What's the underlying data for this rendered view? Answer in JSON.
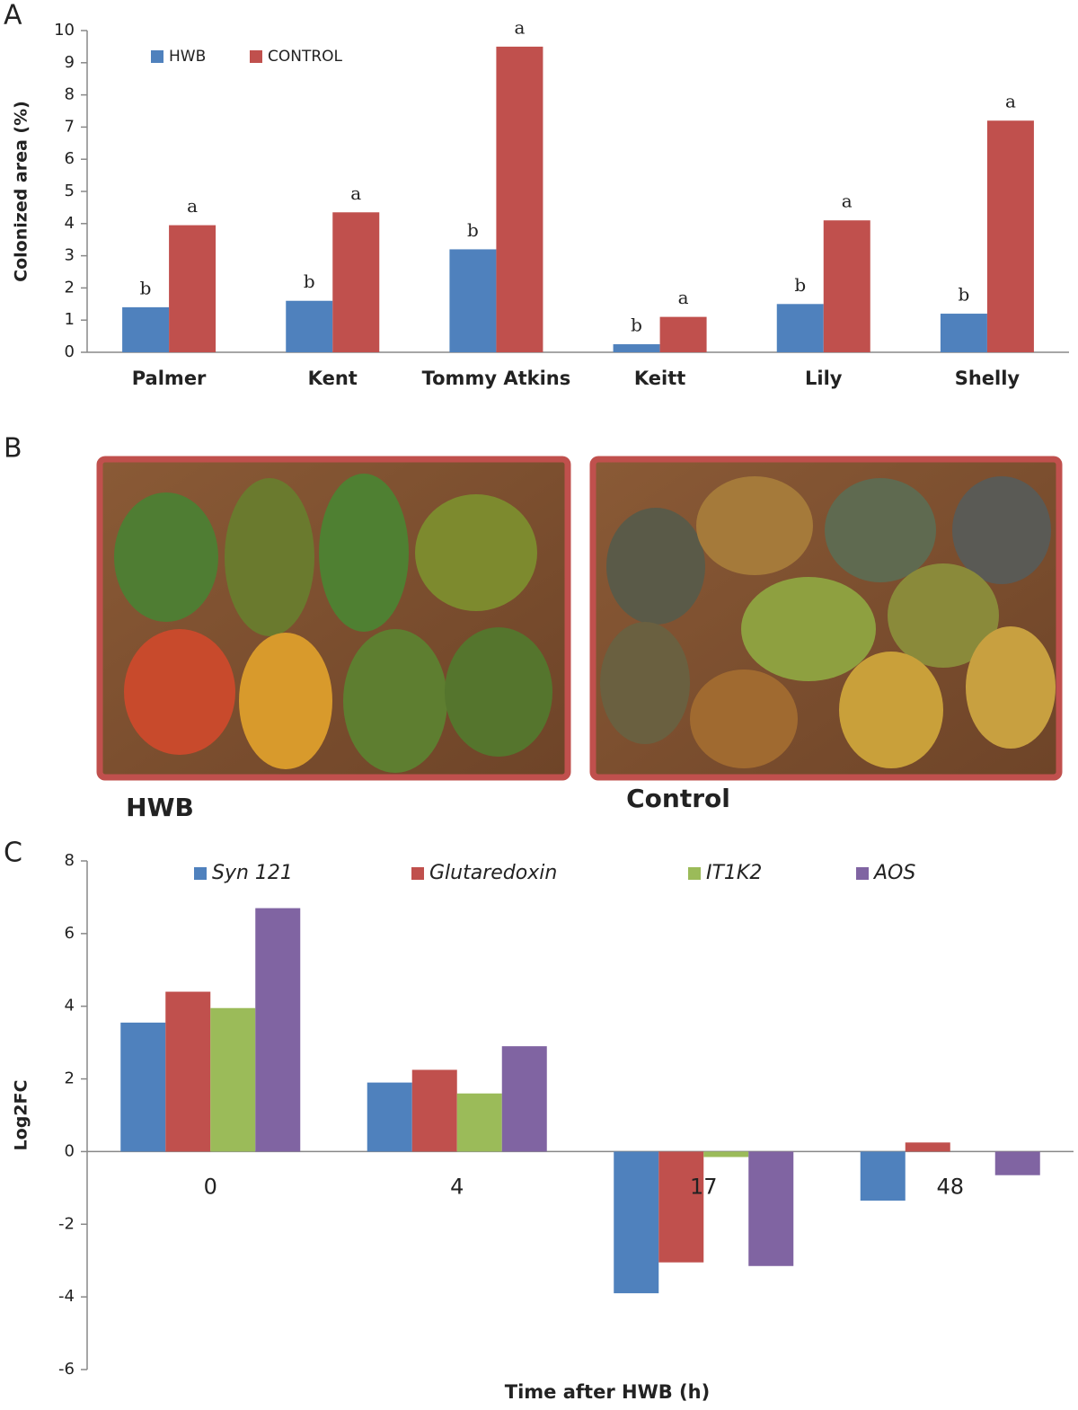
{
  "chart_data": [
    {
      "type": "bar",
      "panel_label": "A",
      "ylabel": "Colonized area (%)",
      "categories": [
        "Palmer",
        "Kent",
        "Tommy Atkins",
        "Keitt",
        "Lily",
        "Shelly"
      ],
      "series": [
        {
          "name": "HWB",
          "color": "#4f81bd",
          "values": [
            1.4,
            1.6,
            3.2,
            0.25,
            1.5,
            1.2
          ],
          "letters": [
            "b",
            "b",
            "b",
            "b",
            "b",
            "b"
          ]
        },
        {
          "name": "CONTROL",
          "color": "#c0504d",
          "values": [
            3.95,
            4.35,
            9.5,
            1.1,
            4.1,
            7.2
          ],
          "letters": [
            "a",
            "a",
            "a",
            "a",
            "a",
            "a"
          ]
        }
      ],
      "ylim": [
        0,
        10
      ],
      "yticks": [
        0,
        1,
        2,
        3,
        4,
        5,
        6,
        7,
        8,
        9,
        10
      ],
      "legend": "top-left"
    },
    {
      "type": "bar",
      "panel_label": "C",
      "ylabel": "Log2FC",
      "xlabel": "Time after HWB (h)",
      "categories": [
        "0",
        "4",
        "17",
        "48"
      ],
      "series": [
        {
          "name": "Syn 121",
          "color": "#4f81bd",
          "values": [
            3.55,
            1.9,
            -3.9,
            -1.35
          ]
        },
        {
          "name": "Glutaredoxin",
          "color": "#c0504d",
          "values": [
            4.4,
            2.25,
            -3.05,
            0.25
          ]
        },
        {
          "name": "IT1K2",
          "color": "#9bbb59",
          "values": [
            3.95,
            1.6,
            -0.15,
            0
          ]
        },
        {
          "name": "AOS",
          "color": "#8064a2",
          "values": [
            6.7,
            2.9,
            -3.15,
            -0.65
          ]
        }
      ],
      "ylim": [
        -6,
        8
      ],
      "yticks": [
        -6,
        -4,
        -2,
        0,
        2,
        4,
        6,
        8
      ],
      "legend": "top"
    }
  ],
  "photo_panel": {
    "panel_label": "B",
    "captions": [
      "HWB",
      "Control"
    ]
  }
}
